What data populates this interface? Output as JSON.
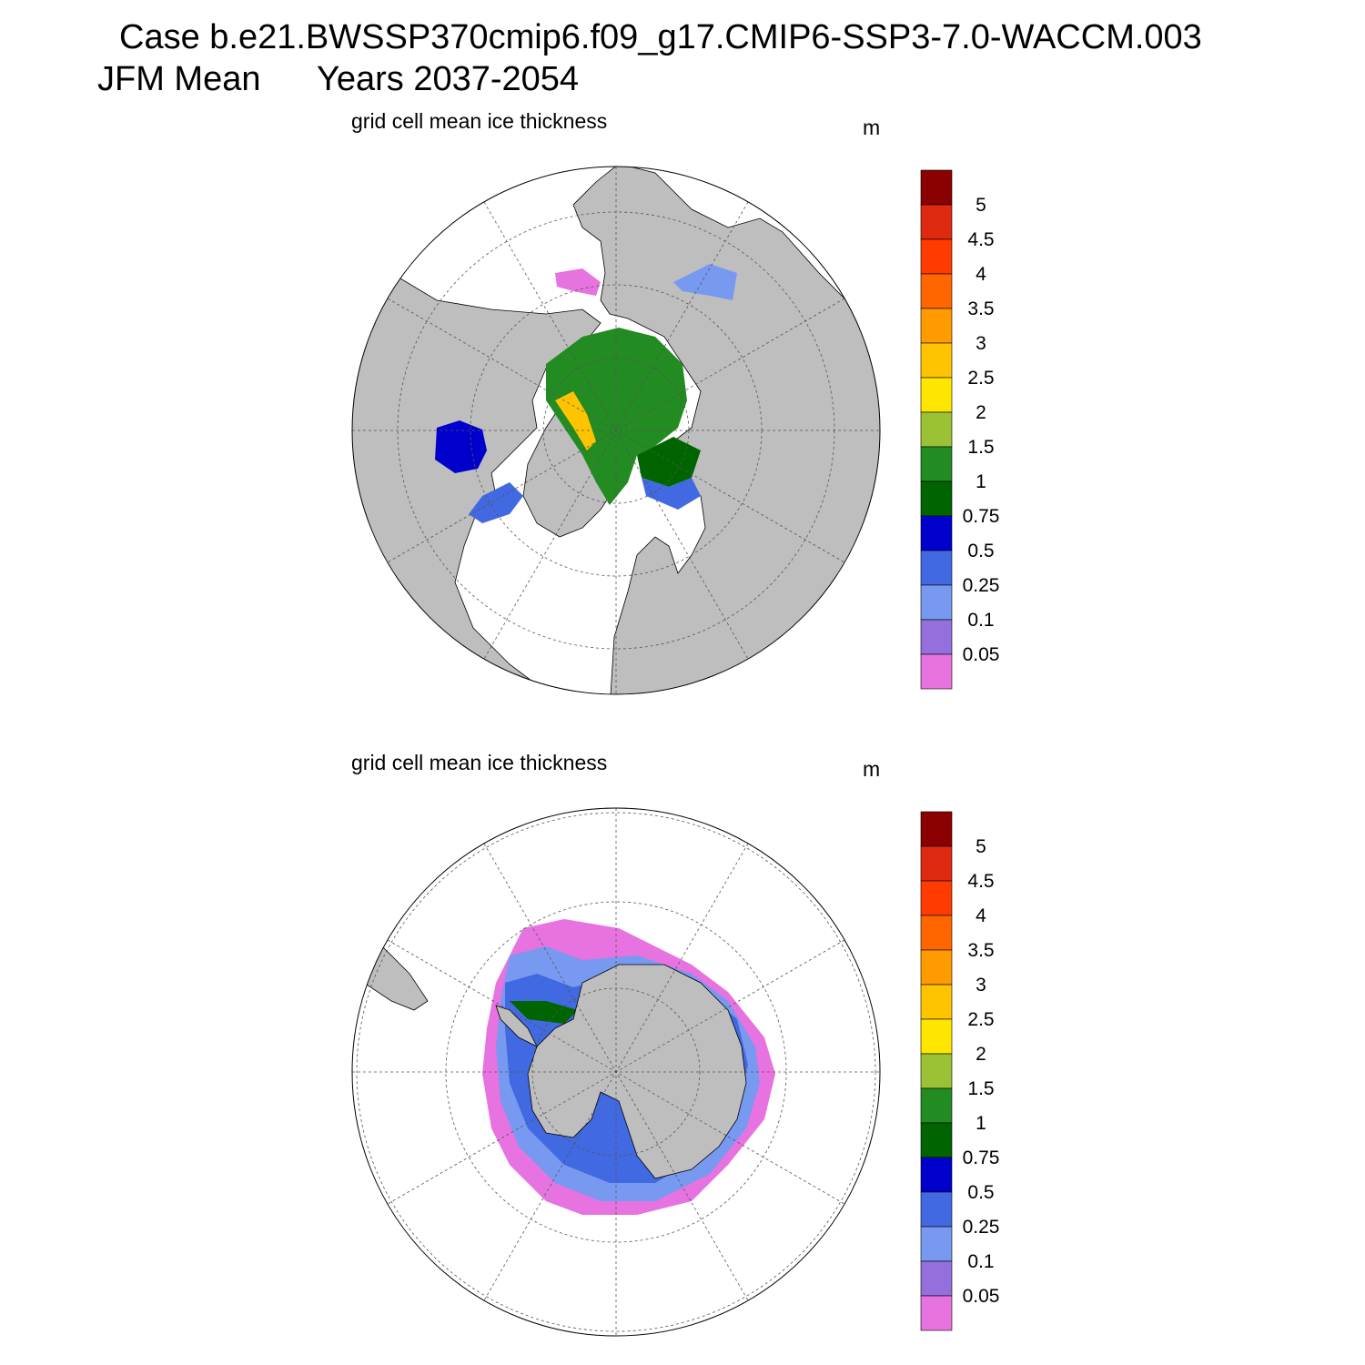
{
  "header": {
    "case_line": "Case b.e21.BWSSP370cmip6.f09_g17.CMIP6-SSP3-7.0-WACCM.003",
    "season": "JFM Mean",
    "years": "Years 2037-2054"
  },
  "panels": [
    {
      "id": "north",
      "label": "grid cell mean ice thickness",
      "unit": "m"
    },
    {
      "id": "south",
      "label": "grid cell mean ice thickness",
      "unit": "m"
    }
  ],
  "colors": {
    "land": "#bebebe",
    "ocean": "#ffffff",
    "grid": "#555555"
  },
  "colorbar": {
    "levels": [
      "5",
      "4.5",
      "4",
      "3.5",
      "3",
      "2.5",
      "2",
      "1.5",
      "1",
      "0.75",
      "0.5",
      "0.25",
      "0.1",
      "0.05"
    ],
    "colors": [
      "#8b0000",
      "#dd2a10",
      "#ff3b00",
      "#ff6600",
      "#ff9a00",
      "#ffc300",
      "#ffe600",
      "#9ac234",
      "#228b22",
      "#006400",
      "#0000cd",
      "#4169e1",
      "#7799f0",
      "#9370db",
      "#e673e0"
    ]
  }
}
